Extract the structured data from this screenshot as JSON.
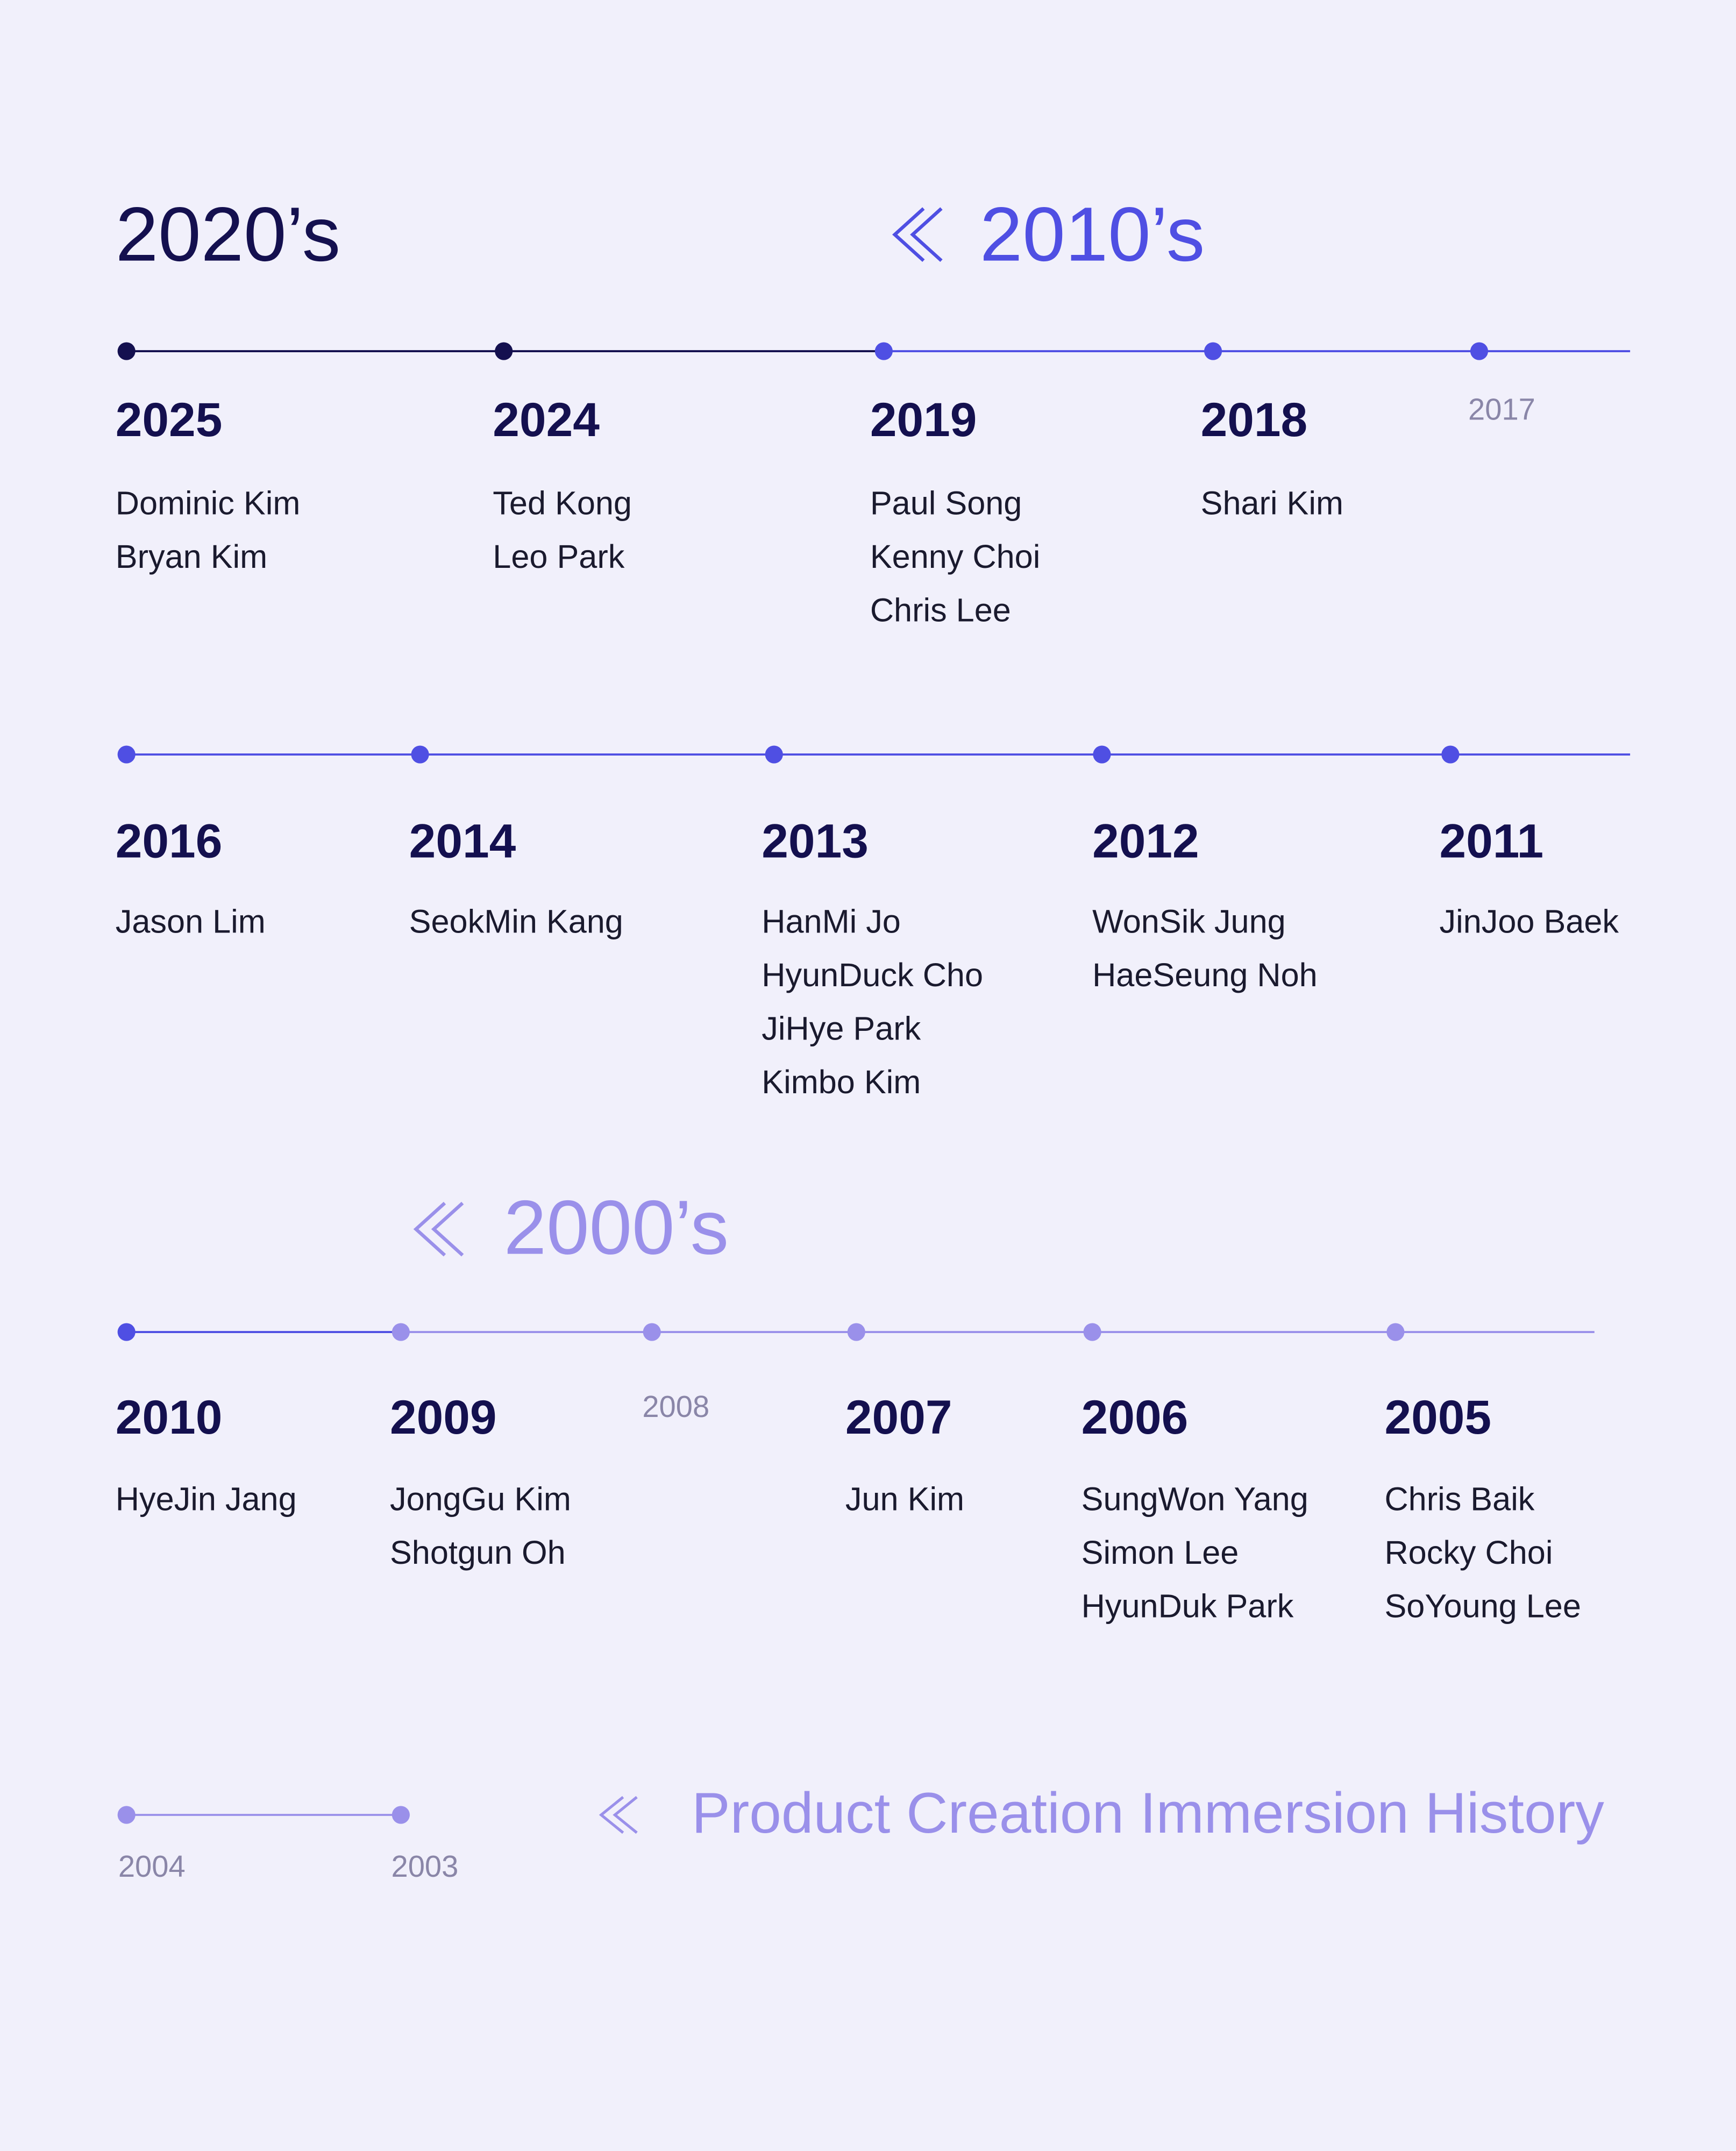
{
  "decades": [
    {
      "label": "2020’s",
      "color": "#14104f"
    },
    {
      "label": "2010’s",
      "color": "#4f4fe3"
    },
    {
      "label": "2000’s",
      "color": "#9a90ea"
    }
  ],
  "title": "Product Creation Immersion History",
  "rows": [
    {
      "entries": [
        {
          "year": "2025",
          "color": "#14104f",
          "names": [
            "Dominic Kim",
            "Bryan Kim"
          ]
        },
        {
          "year": "2024",
          "color": "#14104f",
          "names": [
            "Ted Kong",
            "Leo Park"
          ]
        },
        {
          "year": "2019",
          "color": "#4f4fe3",
          "names": [
            "Paul Song",
            "Kenny Choi",
            "Chris Lee"
          ]
        },
        {
          "year": "2018",
          "color": "#4f4fe3",
          "names": [
            "Shari Kim"
          ]
        },
        {
          "year": "2017",
          "color": "#4f4fe3",
          "minor": true,
          "names": []
        }
      ]
    },
    {
      "entries": [
        {
          "year": "2016",
          "color": "#4f4fe3",
          "names": [
            "Jason Lim"
          ]
        },
        {
          "year": "2014",
          "color": "#4f4fe3",
          "names": [
            "SeokMin Kang"
          ]
        },
        {
          "year": "2013",
          "color": "#4f4fe3",
          "names": [
            "HanMi Jo",
            "HyunDuck Cho",
            "JiHye Park",
            "Kimbo Kim"
          ]
        },
        {
          "year": "2012",
          "color": "#4f4fe3",
          "names": [
            "WonSik Jung",
            "HaeSeung Noh"
          ]
        },
        {
          "year": "2011",
          "color": "#4f4fe3",
          "names": [
            "JinJoo Baek"
          ]
        }
      ]
    },
    {
      "entries": [
        {
          "year": "2010",
          "color": "#4f4fe3",
          "names": [
            "HyeJin Jang"
          ]
        },
        {
          "year": "2009",
          "color": "#9a90ea",
          "names": [
            "JongGu Kim",
            "Shotgun Oh"
          ]
        },
        {
          "year": "2008",
          "color": "#9a90ea",
          "minor": true,
          "names": []
        },
        {
          "year": "2007",
          "color": "#9a90ea",
          "names": [
            "Jun Kim"
          ]
        },
        {
          "year": "2006",
          "color": "#9a90ea",
          "names": [
            "SungWon Yang",
            "Simon Lee",
            "HyunDuk Park"
          ]
        },
        {
          "year": "2005",
          "color": "#9a90ea",
          "names": [
            "Chris Baik",
            "Rocky Choi",
            "SoYoung Lee"
          ]
        }
      ]
    },
    {
      "entries": [
        {
          "year": "2004",
          "color": "#9a90ea",
          "minor": true,
          "names": []
        },
        {
          "year": "2003",
          "color": "#9a90ea",
          "minor": true,
          "names": []
        }
      ]
    }
  ]
}
